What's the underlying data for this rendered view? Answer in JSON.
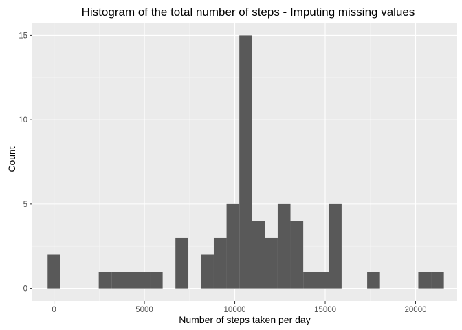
{
  "colors": {
    "panel_background": "#ebebeb",
    "grid_major": "#ffffff",
    "grid_minor": "#f5f5f5",
    "bar_fill": "#595959",
    "tick": "#333333"
  },
  "chart_data": {
    "type": "bar",
    "subtype": "histogram",
    "title": "Histogram of the total number of steps - Imputing missing values",
    "xlabel": "Number of steps taken per day",
    "ylabel": "Count",
    "xlim": [
      -1200,
      22300
    ],
    "ylim": [
      -0.75,
      15.75
    ],
    "x_ticks": [
      0,
      5000,
      10000,
      15000,
      20000
    ],
    "x_tick_labels": [
      "0",
      "5000",
      "10000",
      "15000",
      "20000"
    ],
    "y_ticks": [
      0,
      5,
      10,
      15
    ],
    "y_tick_labels": [
      "0",
      "5",
      "10",
      "15"
    ],
    "grid": true,
    "bin_width": 707,
    "bins": [
      {
        "x0": -353,
        "x1": 354,
        "count": 2
      },
      {
        "x0": 2475,
        "x1": 3182,
        "count": 1
      },
      {
        "x0": 3182,
        "x1": 3889,
        "count": 1
      },
      {
        "x0": 3889,
        "x1": 4596,
        "count": 1
      },
      {
        "x0": 4596,
        "x1": 5303,
        "count": 1
      },
      {
        "x0": 5303,
        "x1": 6010,
        "count": 1
      },
      {
        "x0": 6717,
        "x1": 7424,
        "count": 3
      },
      {
        "x0": 8131,
        "x1": 8838,
        "count": 2
      },
      {
        "x0": 8838,
        "x1": 9545,
        "count": 3
      },
      {
        "x0": 9545,
        "x1": 10252,
        "count": 5
      },
      {
        "x0": 10252,
        "x1": 10959,
        "count": 15
      },
      {
        "x0": 10959,
        "x1": 11666,
        "count": 4
      },
      {
        "x0": 11666,
        "x1": 12373,
        "count": 3
      },
      {
        "x0": 12373,
        "x1": 13080,
        "count": 5
      },
      {
        "x0": 13080,
        "x1": 13787,
        "count": 4
      },
      {
        "x0": 13787,
        "x1": 14494,
        "count": 1
      },
      {
        "x0": 14494,
        "x1": 15201,
        "count": 1
      },
      {
        "x0": 15201,
        "x1": 15908,
        "count": 5
      },
      {
        "x0": 17322,
        "x1": 18029,
        "count": 1
      },
      {
        "x0": 20150,
        "x1": 20857,
        "count": 1
      },
      {
        "x0": 20857,
        "x1": 21564,
        "count": 1
      }
    ]
  }
}
